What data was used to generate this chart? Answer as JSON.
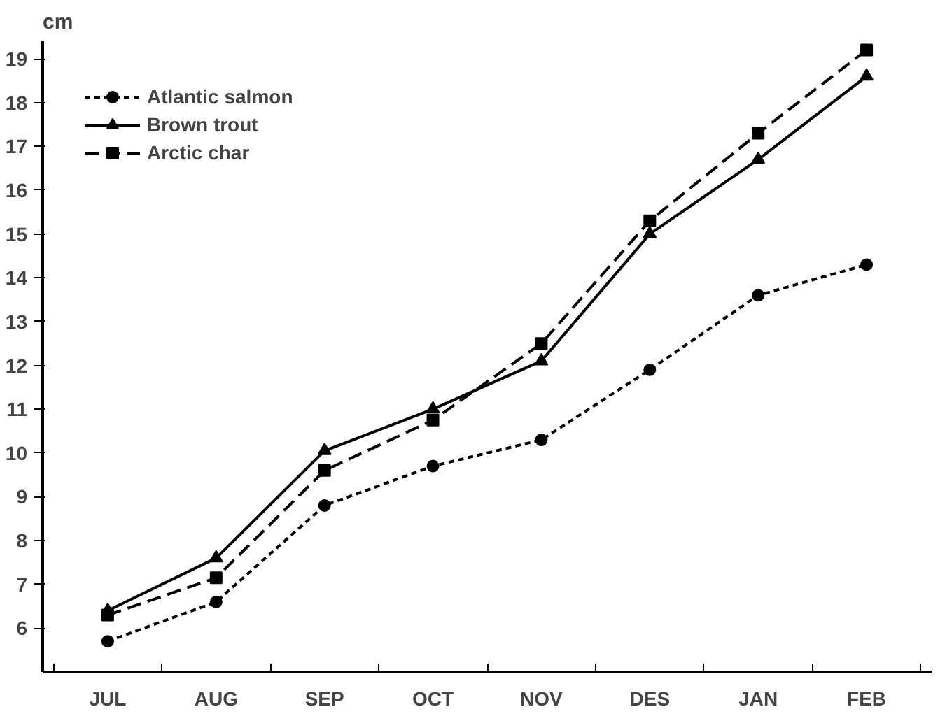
{
  "chart_data": {
    "type": "line",
    "ylabel": "cm",
    "categories": [
      "JUL",
      "AUG",
      "SEP",
      "OCT",
      "NOV",
      "DES",
      "JAN",
      "FEB"
    ],
    "ylim": [
      5,
      19.4
    ],
    "yticks": [
      6,
      7,
      8,
      9,
      10,
      11,
      12,
      13,
      14,
      15,
      16,
      17,
      18,
      19
    ],
    "legend": "top left",
    "grid": false,
    "series": [
      {
        "name": "Atlantic salmon",
        "color": "#000000",
        "marker": "circle",
        "line_style": "dotted",
        "values": [
          5.7,
          6.6,
          8.8,
          9.7,
          10.3,
          11.9,
          13.6,
          14.3
        ]
      },
      {
        "name": "Brown trout",
        "color": "#000000",
        "marker": "triangle",
        "line_style": "solid",
        "values": [
          6.4,
          7.6,
          10.05,
          11.0,
          12.1,
          15.0,
          16.7,
          18.6
        ]
      },
      {
        "name": "Arctic char",
        "color": "#000000",
        "marker": "square",
        "line_style": "dashed",
        "values": [
          6.3,
          7.15,
          9.6,
          10.75,
          12.5,
          15.3,
          17.3,
          19.2
        ]
      }
    ]
  }
}
